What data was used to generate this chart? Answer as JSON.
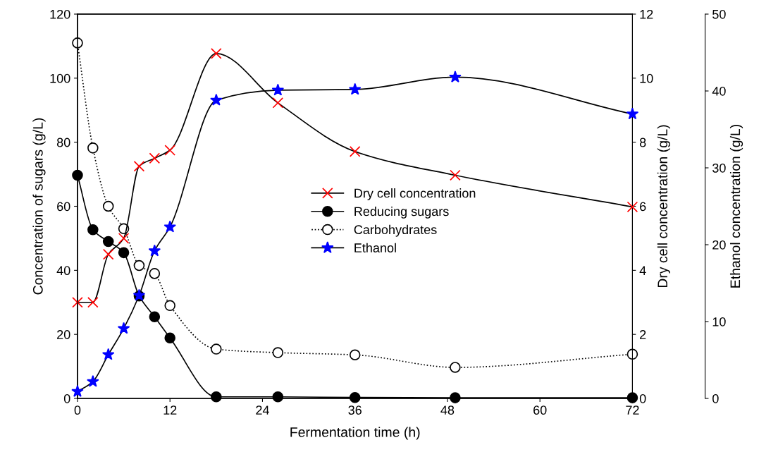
{
  "chart_data": {
    "type": "line",
    "xlabel": "Fermentation time (h)",
    "ylabel": "Concentration of sugars (g/L)",
    "y2label": "Dry cell concentration (g/L)",
    "y3label": "Ethanol concentration (g/L)",
    "xlim": [
      0,
      72
    ],
    "xticks": [
      0,
      12,
      24,
      36,
      48,
      60,
      72
    ],
    "ylim": [
      0,
      120
    ],
    "yticks": [
      0,
      20,
      40,
      60,
      80,
      100,
      120
    ],
    "y2lim": [
      0,
      12
    ],
    "y2ticks": [
      0,
      2,
      4,
      6,
      8,
      10,
      12
    ],
    "y3lim": [
      0,
      50
    ],
    "y3ticks": [
      0,
      10,
      20,
      30,
      40,
      50
    ],
    "x": [
      0,
      2,
      4,
      6,
      8,
      10,
      12,
      18,
      26,
      36,
      49,
      72
    ],
    "legend": "center",
    "grid": false,
    "series": [
      {
        "name": "Dry cell concentration",
        "color": "#ff0000",
        "marker": "cross",
        "line_style": "solid",
        "axis": "y2",
        "values": [
          3.0,
          3.0,
          4.5,
          5.0,
          7.25,
          7.5,
          7.75,
          10.77,
          9.23,
          7.71,
          6.97,
          5.98
        ]
      },
      {
        "name": "Reducing sugars",
        "color": "#000000",
        "marker": "circle",
        "line_style": "solid",
        "values": [
          69.7,
          52.7,
          49,
          45.5,
          32,
          25.5,
          18.9,
          0.5,
          0.5,
          0.3,
          0.2,
          0.2
        ]
      },
      {
        "name": "Carbohydrates",
        "color": "#ffffff",
        "marker": "circle",
        "line_style": "dotted",
        "values": [
          111,
          78.2,
          60,
          53,
          41.5,
          39,
          29,
          15.4,
          14.3,
          13.6,
          9.7,
          13.8
        ]
      },
      {
        "name": "Ethanol",
        "color": "#0000ff",
        "marker": "star",
        "line_style": "solid",
        "axis": "y3",
        "values": [
          0.9,
          2.2,
          5.7,
          9.1,
          13.4,
          19.2,
          22.3,
          38.8,
          40.1,
          40.2,
          41.8,
          37.0
        ]
      }
    ]
  }
}
